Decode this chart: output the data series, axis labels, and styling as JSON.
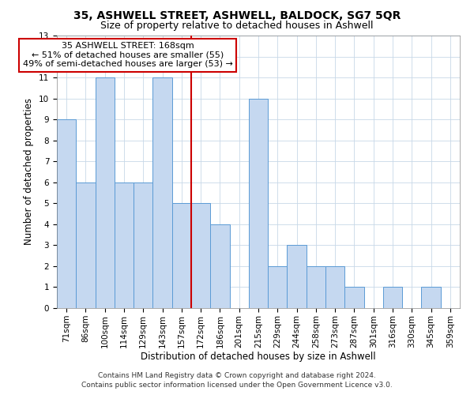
{
  "title": "35, ASHWELL STREET, ASHWELL, BALDOCK, SG7 5QR",
  "subtitle": "Size of property relative to detached houses in Ashwell",
  "xlabel": "Distribution of detached houses by size in Ashwell",
  "ylabel": "Number of detached properties",
  "bar_labels": [
    "71sqm",
    "86sqm",
    "100sqm",
    "114sqm",
    "129sqm",
    "143sqm",
    "157sqm",
    "172sqm",
    "186sqm",
    "201sqm",
    "215sqm",
    "229sqm",
    "244sqm",
    "258sqm",
    "273sqm",
    "287sqm",
    "301sqm",
    "316sqm",
    "330sqm",
    "345sqm",
    "359sqm"
  ],
  "bar_values": [
    9,
    6,
    11,
    6,
    6,
    11,
    5,
    5,
    4,
    0,
    10,
    2,
    3,
    2,
    2,
    1,
    0,
    1,
    0,
    1,
    0
  ],
  "bar_color": "#c5d8f0",
  "bar_edge_color": "#5b9bd5",
  "vline_color": "#cc0000",
  "annotation_title": "35 ASHWELL STREET: 168sqm",
  "annotation_line1": "← 51% of detached houses are smaller (55)",
  "annotation_line2": "49% of semi-detached houses are larger (53) →",
  "annotation_box_color": "#ffffff",
  "annotation_box_edge_color": "#cc0000",
  "ylim": [
    0,
    13
  ],
  "yticks": [
    0,
    1,
    2,
    3,
    4,
    5,
    6,
    7,
    8,
    9,
    10,
    11,
    12,
    13
  ],
  "grid_color": "#c8d8e8",
  "background_color": "#ffffff",
  "footer_line1": "Contains HM Land Registry data © Crown copyright and database right 2024.",
  "footer_line2": "Contains public sector information licensed under the Open Government Licence v3.0.",
  "title_fontsize": 10,
  "subtitle_fontsize": 9,
  "axis_label_fontsize": 8.5,
  "tick_fontsize": 7.5,
  "footer_fontsize": 6.5
}
